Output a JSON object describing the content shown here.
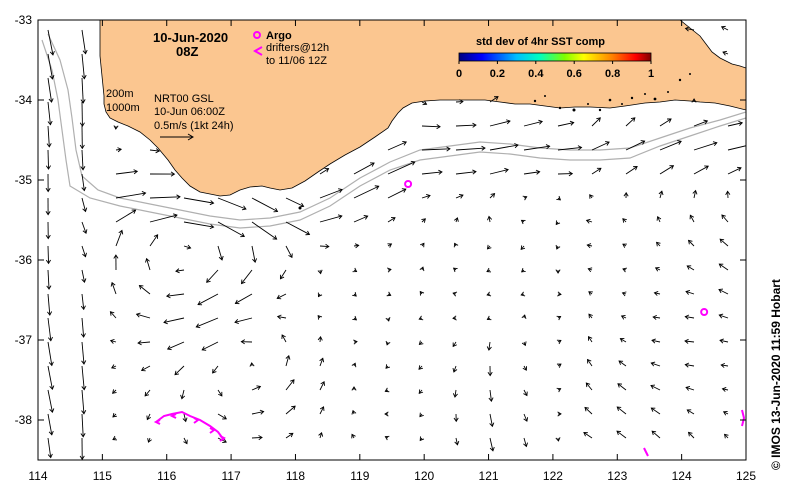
{
  "map": {
    "date_title": "10-Jun-2020",
    "time_title": "08Z",
    "argo_label": "Argo",
    "drifters_line1": "drifters@12h",
    "drifters_line2": "to 11/06 12Z",
    "isobath_200": "200m",
    "isobath_1000": "1000m",
    "product_line1": "NRT00 GSL",
    "product_line2": "10-Jun 06:00Z",
    "scale_label": "0.5m/s (1kt 24h)",
    "colorbar_title": "std dev of 4hr SST comp",
    "colorbar_ticks": [
      "0",
      "0.2",
      "0.4",
      "0.6",
      "0.8",
      "1"
    ],
    "credit": "© IMOS 13-Jun-2020 11:59 Hobart",
    "lon_ticks": [
      "114",
      "115",
      "116",
      "117",
      "118",
      "119",
      "120",
      "121",
      "122",
      "123",
      "124",
      "125"
    ],
    "lat_ticks": [
      "-33",
      "-34",
      "-35",
      "-36",
      "-37",
      "-38"
    ],
    "lon_range": [
      114,
      125
    ],
    "lat_range": [
      -38.5,
      -33
    ],
    "colors": {
      "land": "#fbc690",
      "argo": "#ff00ff",
      "drifter": "#ff00ff",
      "isobath": "#b0b0b0",
      "arrow": "#000000"
    },
    "colorbar_colors": [
      "#00007f",
      "#0000ff",
      "#007fff",
      "#00ffff",
      "#7fff7f",
      "#ffff00",
      "#ff7f00",
      "#ff0000",
      "#7f0000"
    ],
    "argo_floats": [
      {
        "lon": 119.75,
        "lat": -35.05
      },
      {
        "lon": 124.35,
        "lat": -36.65
      }
    ]
  }
}
